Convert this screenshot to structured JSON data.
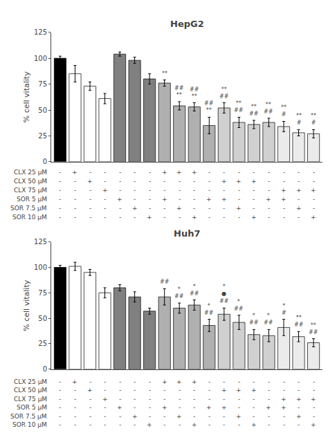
{
  "chart_data": [
    {
      "type": "bar",
      "title": "HepG2",
      "categories": [
        null,
        null,
        null,
        null,
        null,
        null,
        null,
        null,
        null,
        null,
        null,
        null,
        null,
        null,
        null,
        null,
        null,
        null
      ],
      "values": [
        100,
        85,
        73,
        61,
        104,
        98,
        80,
        76,
        54,
        53,
        35,
        52,
        38,
        36,
        38,
        34,
        28,
        27
      ],
      "errors": [
        2,
        8,
        4,
        5,
        2,
        3,
        5,
        3,
        4,
        4,
        8,
        5,
        5,
        4,
        4,
        5,
        3,
        4
      ],
      "colors": [
        "#000000",
        "#ffffff",
        "#ffffff",
        "#ffffff",
        "#808080",
        "#808080",
        "#808080",
        "#b0b0b0",
        "#b0b0b0",
        "#b0b0b0",
        "#b0b0b0",
        "#d0d0d0",
        "#d0d0d0",
        "#d0d0d0",
        "#d0d0d0",
        "#ebebeb",
        "#ebebeb",
        "#ebebeb"
      ],
      "annotations": [
        {
          "bar": 7,
          "lines": [
            "**"
          ]
        },
        {
          "bar": 8,
          "lines": [
            "**",
            "##"
          ]
        },
        {
          "bar": 9,
          "lines": [
            "**",
            "##"
          ]
        },
        {
          "bar": 10,
          "lines": [
            "**",
            "##"
          ]
        },
        {
          "bar": 11,
          "lines": [
            "##",
            "**"
          ]
        },
        {
          "bar": 12,
          "lines": [
            "##",
            "**"
          ]
        },
        {
          "bar": 13,
          "lines": [
            "##",
            "**"
          ]
        },
        {
          "bar": 14,
          "lines": [
            "##",
            "**"
          ]
        },
        {
          "bar": 15,
          "lines": [
            "#",
            "**"
          ]
        },
        {
          "bar": 16,
          "lines": [
            "#",
            "**"
          ]
        },
        {
          "bar": 17,
          "lines": [
            "#",
            "**"
          ]
        }
      ],
      "table_rows": [
        "CLX 25 μM",
        "CLX 50 μM",
        "CLX 75 μM",
        "SOR 5 μM",
        "SOR 7.5 μM",
        "SOR 10 μM"
      ],
      "table_cols": [
        [
          "-",
          "-",
          "-",
          "-",
          "-",
          "-"
        ],
        [
          "+",
          "-",
          "-",
          "-",
          "-",
          "-"
        ],
        [
          "-",
          "+",
          "-",
          "-",
          "-",
          "-"
        ],
        [
          "-",
          "-",
          "+",
          "-",
          "-",
          "-"
        ],
        [
          "-",
          "-",
          "-",
          "+",
          "-",
          "-"
        ],
        [
          "-",
          "-",
          "-",
          "-",
          "+",
          "-"
        ],
        [
          "-",
          "-",
          "-",
          "-",
          "-",
          "+"
        ],
        [
          "+",
          "-",
          "-",
          "+",
          "-",
          "-"
        ],
        [
          "+",
          "-",
          "-",
          "-",
          "+",
          "-"
        ],
        [
          "+",
          "-",
          "-",
          "-",
          "-",
          "+"
        ],
        [
          "-",
          "-",
          "-",
          "+",
          "-",
          "-"
        ],
        [
          "-",
          "+",
          "-",
          "+",
          "-",
          "-"
        ],
        [
          "-",
          "+",
          "-",
          "-",
          "+",
          "-"
        ],
        [
          "-",
          "+",
          "-",
          "-",
          "-",
          "+"
        ],
        [
          "-",
          "-",
          "-",
          "+",
          "-",
          "-"
        ],
        [
          "-",
          "-",
          "+",
          "+",
          "-",
          "-"
        ],
        [
          "-",
          "-",
          "+",
          "-",
          "+",
          "-"
        ],
        [
          "-",
          "-",
          "+",
          "-",
          "-",
          "+"
        ]
      ],
      "ylabel": "% cell vitality",
      "ylim": [
        0,
        125
      ],
      "yticks": [
        0,
        25,
        50,
        75,
        100,
        125
      ],
      "grid": false,
      "tick_labels": "y"
    },
    {
      "type": "bar",
      "title": "Huh7",
      "categories": [
        null,
        null,
        null,
        null,
        null,
        null,
        null,
        null,
        null,
        null,
        null,
        null,
        null,
        null,
        null,
        null,
        null,
        null
      ],
      "values": [
        100,
        101,
        95,
        75,
        80,
        71,
        57,
        71,
        60,
        63,
        43,
        54,
        46,
        34,
        33,
        41,
        32,
        26
      ],
      "errors": [
        2,
        4,
        3,
        5,
        3,
        5,
        3,
        8,
        5,
        5,
        6,
        6,
        7,
        5,
        6,
        8,
        5,
        4
      ],
      "colors": [
        "#000000",
        "#ffffff",
        "#ffffff",
        "#ffffff",
        "#808080",
        "#808080",
        "#808080",
        "#b0b0b0",
        "#b0b0b0",
        "#b0b0b0",
        "#b0b0b0",
        "#d0d0d0",
        "#d0d0d0",
        "#d0d0d0",
        "#d0d0d0",
        "#ebebeb",
        "#ebebeb",
        "#ebebeb"
      ],
      "annotations": [
        {
          "bar": 7,
          "lines": [
            "##"
          ]
        },
        {
          "bar": 8,
          "lines": [
            "##",
            "*"
          ]
        },
        {
          "bar": 9,
          "lines": [
            "##",
            "*"
          ]
        },
        {
          "bar": 10,
          "lines": [
            "##",
            "*"
          ]
        },
        {
          "bar": 11,
          "lines": [
            "##",
            "●",
            "*"
          ]
        },
        {
          "bar": 12,
          "lines": [
            "##",
            "*"
          ]
        },
        {
          "bar": 13,
          "lines": [
            "##",
            "*"
          ]
        },
        {
          "bar": 14,
          "lines": [
            "##",
            "*"
          ]
        },
        {
          "bar": 15,
          "lines": [
            "#",
            "*"
          ]
        },
        {
          "bar": 16,
          "lines": [
            "##",
            "**"
          ]
        },
        {
          "bar": 17,
          "lines": [
            "##",
            "**"
          ]
        }
      ],
      "table_rows": [
        "CLX 25 μM",
        "CLX 50 μM",
        "CLX 75 μM",
        "SOR 5 μM",
        "SOR 7.5 μM",
        "SOR 10 μM"
      ],
      "table_cols": [
        [
          "-",
          "-",
          "-",
          "-",
          "-",
          "-"
        ],
        [
          "+",
          "-",
          "-",
          "-",
          "-",
          "-"
        ],
        [
          "-",
          "+",
          "-",
          "-",
          "-",
          "-"
        ],
        [
          "-",
          "-",
          "+",
          "-",
          "-",
          "-"
        ],
        [
          "-",
          "-",
          "-",
          "+",
          "-",
          "-"
        ],
        [
          "-",
          "-",
          "-",
          "-",
          "+",
          "-"
        ],
        [
          "-",
          "-",
          "-",
          "-",
          "-",
          "+"
        ],
        [
          "+",
          "-",
          "-",
          "+",
          "-",
          "-"
        ],
        [
          "+",
          "-",
          "-",
          "-",
          "+",
          "-"
        ],
        [
          "+",
          "-",
          "-",
          "-",
          "-",
          "+"
        ],
        [
          "-",
          "-",
          "-",
          "+",
          "-",
          "-"
        ],
        [
          "-",
          "+",
          "-",
          "+",
          "-",
          "-"
        ],
        [
          "-",
          "+",
          "-",
          "-",
          "+",
          "-"
        ],
        [
          "-",
          "+",
          "-",
          "-",
          "-",
          "+"
        ],
        [
          "-",
          "-",
          "-",
          "+",
          "-",
          "-"
        ],
        [
          "-",
          "-",
          "+",
          "+",
          "-",
          "-"
        ],
        [
          "-",
          "-",
          "+",
          "-",
          "+",
          "-"
        ],
        [
          "-",
          "-",
          "+",
          "-",
          "-",
          "+"
        ]
      ],
      "ylabel": "% cell vitality",
      "ylim": [
        0,
        125
      ],
      "yticks": [
        0,
        25,
        50,
        75,
        100,
        125
      ],
      "grid": false,
      "tick_labels": "y"
    }
  ]
}
